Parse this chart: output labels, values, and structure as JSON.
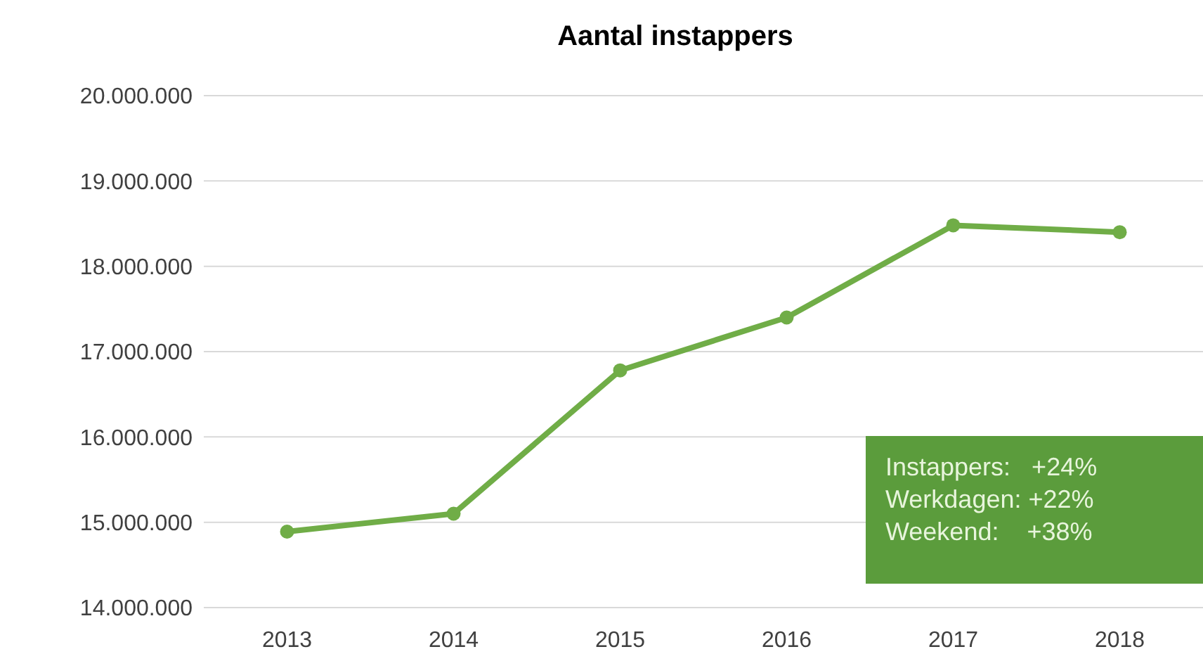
{
  "chart_data": {
    "type": "line",
    "title": "Aantal instappers",
    "categories": [
      "2013",
      "2014",
      "2015",
      "2016",
      "2017",
      "2018"
    ],
    "series": [
      {
        "color": "#70ad47",
        "values": [
          14890000,
          15100000,
          16780000,
          17400000,
          18480000,
          18400000
        ]
      }
    ],
    "ylim": [
      14000000,
      20000000
    ],
    "yticks": [
      {
        "value": 14000000,
        "label": "14.000.000"
      },
      {
        "value": 15000000,
        "label": "15.000.000"
      },
      {
        "value": 16000000,
        "label": "16.000.000"
      },
      {
        "value": 17000000,
        "label": "17.000.000"
      },
      {
        "value": 18000000,
        "label": "18.000.000"
      },
      {
        "value": 19000000,
        "label": "19.000.000"
      },
      {
        "value": 20000000,
        "label": "20.000.000"
      }
    ],
    "grid": "y",
    "marker": "circle",
    "line_style": "solid",
    "annotations": [
      "Instappers:   +24%",
      "Werkdagen: +22%",
      "Weekend:    +38%"
    ]
  }
}
